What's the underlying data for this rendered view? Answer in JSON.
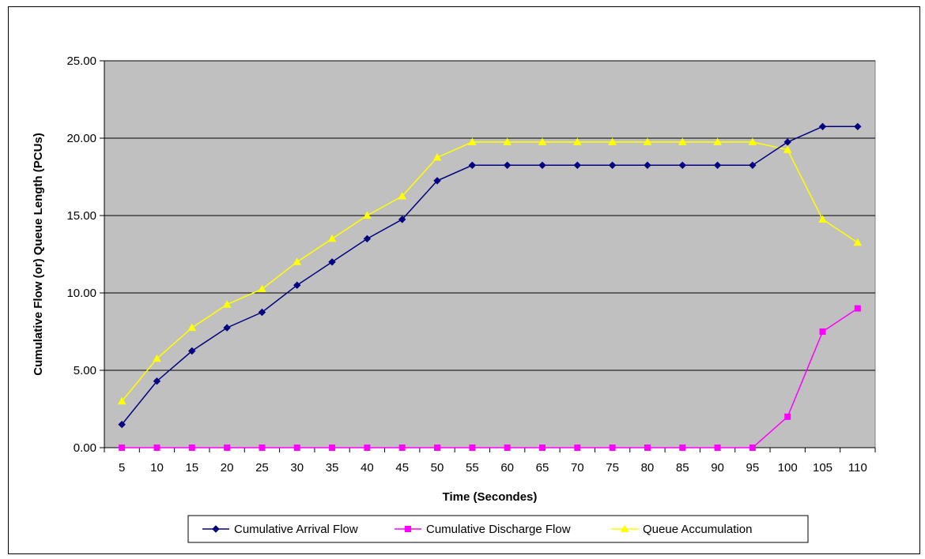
{
  "chart_data": {
    "type": "line",
    "xlabel": "Time (Secondes)",
    "ylabel": "Cumulative Flow (or) Queue Length (PCUs)",
    "ylim": [
      0,
      25
    ],
    "yticks": [
      "0.00",
      "5.00",
      "10.00",
      "15.00",
      "20.00",
      "25.00"
    ],
    "categories": [
      "5",
      "10",
      "15",
      "20",
      "25",
      "30",
      "35",
      "40",
      "45",
      "50",
      "55",
      "60",
      "65",
      "70",
      "75",
      "80",
      "85",
      "90",
      "95",
      "100",
      "105",
      "110"
    ],
    "grid": "horizontal",
    "legend_position": "bottom",
    "plot_background": "#c0c0c0",
    "series": [
      {
        "name": "Cumulative Arrival Flow",
        "color": "#000080",
        "marker": "diamond",
        "values": [
          1.5,
          4.3,
          6.25,
          7.75,
          8.75,
          10.5,
          12.0,
          13.5,
          14.75,
          17.25,
          18.25,
          18.25,
          18.25,
          18.25,
          18.25,
          18.25,
          18.25,
          18.25,
          18.25,
          19.75,
          20.75,
          20.75
        ]
      },
      {
        "name": "Cumulative Discharge Flow",
        "color": "#ff00ff",
        "marker": "square",
        "values": [
          0,
          0,
          0,
          0,
          0,
          0,
          0,
          0,
          0,
          0,
          0,
          0,
          0,
          0,
          0,
          0,
          0,
          0,
          0,
          2.0,
          7.5,
          9.0
        ]
      },
      {
        "name": "Queue Accumulation",
        "color": "#ffff00",
        "marker": "triangle",
        "values": [
          3.0,
          5.75,
          7.75,
          9.25,
          10.25,
          12.0,
          13.5,
          15.0,
          16.25,
          18.75,
          19.75,
          19.75,
          19.75,
          19.75,
          19.75,
          19.75,
          19.75,
          19.75,
          19.75,
          19.25,
          14.75,
          13.25
        ]
      }
    ]
  }
}
